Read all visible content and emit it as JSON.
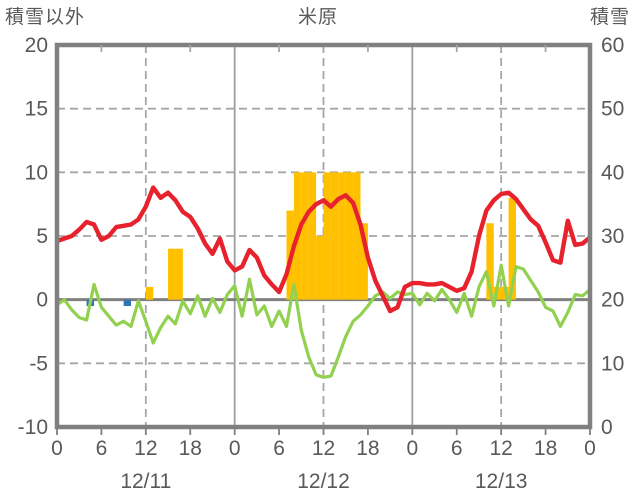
{
  "header": {
    "left_axis_title": "積雪以外",
    "station_name": "米原",
    "right_axis_title": "積雪"
  },
  "colors": {
    "temperature_line": "#e8222c",
    "green_line": "#92d050",
    "precip_bar": "#ffc000",
    "blue_bar": "#2e75b6",
    "snow_depth_line": "#7030a0",
    "axis_border": "#808080",
    "grid_dashed": "#a6a6a6",
    "grid_solid": "#9e9e9e",
    "text": "#595959"
  },
  "chart_data": {
    "type": "line+bar",
    "title": "米原",
    "x_range_hours": [
      0,
      72
    ],
    "left_axis": {
      "label": "積雪以外",
      "min": -10,
      "max": 20,
      "ticks": [
        20,
        15,
        10,
        5,
        0,
        -5,
        -10
      ]
    },
    "right_axis": {
      "label": "積雪",
      "min": 0,
      "max": 60,
      "ticks": [
        60,
        50,
        40,
        30,
        20,
        10,
        0
      ]
    },
    "grid": {
      "h_dashed_at_left_values": [
        15,
        10,
        5,
        -5
      ],
      "v_dashed_at_hours": [
        12,
        36,
        60
      ],
      "v_solid_at_hours": [
        24,
        48
      ],
      "zero_line_left_value": 0
    },
    "x_ticks": {
      "hours": [
        0,
        6,
        12,
        18,
        24,
        30,
        36,
        42,
        48,
        54,
        60,
        66,
        72
      ],
      "labels": [
        "0",
        "6",
        "12",
        "18",
        "0",
        "6",
        "12",
        "18",
        "0",
        "6",
        "12",
        "18",
        "0"
      ]
    },
    "date_labels": [
      {
        "text": "12/11",
        "center_hour": 12
      },
      {
        "text": "12/12",
        "center_hour": 36
      },
      {
        "text": "12/13",
        "center_hour": 60
      }
    ],
    "series": [
      {
        "name": "temperature-red-line",
        "type": "line",
        "axis": "left",
        "values": [
          4.6,
          4.8,
          5.0,
          5.5,
          6.1,
          5.9,
          4.7,
          5.0,
          5.7,
          5.8,
          5.9,
          6.3,
          7.3,
          8.8,
          8.0,
          8.4,
          7.8,
          6.9,
          6.5,
          5.6,
          4.4,
          3.6,
          4.8,
          3.0,
          2.3,
          2.6,
          3.9,
          3.3,
          1.9,
          1.2,
          0.6,
          2.0,
          4.2,
          5.9,
          6.9,
          7.5,
          7.8,
          7.3,
          7.9,
          8.2,
          7.6,
          5.9,
          3.3,
          1.5,
          0.3,
          -0.9,
          -0.6,
          1.0,
          1.3,
          1.3,
          1.2,
          1.2,
          1.3,
          1.0,
          0.7,
          0.9,
          2.2,
          5.0,
          7.0,
          7.8,
          8.3,
          8.4,
          7.9,
          7.1,
          6.3,
          5.8,
          4.5,
          3.1,
          2.9,
          6.2,
          4.3,
          4.4,
          4.9
        ]
      },
      {
        "name": "green-line",
        "type": "line",
        "axis": "left",
        "values": [
          -0.4,
          0.0,
          -0.8,
          -1.4,
          -1.6,
          1.2,
          -0.6,
          -1.3,
          -2.0,
          -1.7,
          -2.1,
          -0.1,
          -1.7,
          -3.4,
          -2.2,
          -1.3,
          -1.9,
          -0.1,
          -1.1,
          0.3,
          -1.3,
          0.1,
          -1.0,
          0.4,
          1.1,
          -1.3,
          1.6,
          -1.2,
          -0.5,
          -2.1,
          -0.9,
          -2.1,
          1.2,
          -2.4,
          -4.5,
          -5.9,
          -6.1,
          -6.0,
          -4.5,
          -2.9,
          -1.7,
          -1.2,
          -0.5,
          0.3,
          0.6,
          0.1,
          0.6,
          0.4,
          0.5,
          -0.4,
          0.5,
          -0.1,
          0.8,
          0.0,
          -1.0,
          0.5,
          -1.3,
          1.0,
          2.2,
          -0.5,
          2.7,
          -0.5,
          2.6,
          2.4,
          1.5,
          0.6,
          -0.6,
          -0.9,
          -2.1,
          -1.0,
          0.4,
          0.3,
          0.8
        ]
      },
      {
        "name": "precipitation-orange-bars",
        "type": "bar",
        "axis": "left",
        "values": [
          0,
          0,
          0,
          0,
          0,
          0,
          0,
          0,
          0,
          0,
          0,
          0,
          1,
          0,
          0,
          4,
          4,
          0,
          0,
          0,
          0,
          0,
          0,
          0,
          0,
          0,
          0,
          0,
          0,
          0,
          0,
          7,
          10,
          10,
          10,
          5,
          10,
          10,
          10,
          10,
          10,
          6,
          0,
          0,
          0,
          0,
          0,
          0,
          0,
          0,
          0,
          0,
          0,
          0,
          0,
          0,
          0,
          0,
          6,
          1,
          1,
          8,
          0,
          0,
          0,
          0,
          0,
          0,
          0,
          0,
          0,
          0
        ]
      },
      {
        "name": "blue-bars",
        "type": "bar",
        "axis": "left",
        "values": [
          0,
          0,
          0,
          0,
          -0.5,
          0,
          0,
          0,
          0,
          -0.5,
          0,
          0,
          0,
          0,
          0,
          0,
          0,
          0,
          0,
          0,
          0,
          0,
          0,
          0,
          0,
          0,
          0,
          0,
          0,
          0,
          0,
          0,
          0,
          0,
          0,
          0,
          0,
          0,
          0,
          0,
          0,
          0,
          0,
          0,
          0,
          0,
          0,
          0,
          0,
          0,
          0,
          0,
          0,
          0,
          0,
          0,
          0,
          0,
          0,
          0,
          0,
          0,
          0,
          0,
          0,
          0,
          0,
          0,
          0,
          0,
          0,
          0
        ]
      },
      {
        "name": "snow-depth-purple-line",
        "type": "line",
        "axis": "right",
        "constant": 0
      }
    ]
  }
}
